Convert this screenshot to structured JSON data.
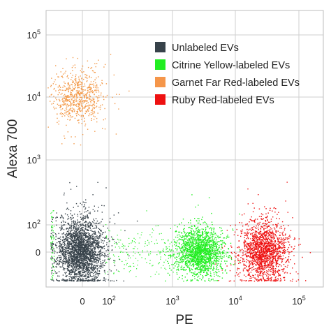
{
  "chart_data": {
    "type": "scatter",
    "xlabel": "PE",
    "ylabel": "Alexa 700",
    "x_scale": "biexponential",
    "y_scale": "biexponential",
    "x_ticks": [
      {
        "value": 0,
        "base": "0",
        "exp": ""
      },
      {
        "value": 100,
        "base": "10",
        "exp": "2"
      },
      {
        "value": 1000,
        "base": "10",
        "exp": "3"
      },
      {
        "value": 10000,
        "base": "10",
        "exp": "4"
      },
      {
        "value": 100000,
        "base": "10",
        "exp": "5"
      }
    ],
    "y_ticks": [
      {
        "value": 0,
        "base": "0",
        "exp": ""
      },
      {
        "value": 100,
        "base": "10",
        "exp": "2"
      },
      {
        "value": 1000,
        "base": "10",
        "exp": "3"
      },
      {
        "value": 10000,
        "base": "10",
        "exp": "4"
      },
      {
        "value": 100000,
        "base": "10",
        "exp": "5"
      }
    ],
    "grid": true,
    "legend_position": "top-right",
    "series": [
      {
        "name": "Unlabeled EVs",
        "color": "#37424a",
        "legend_color": "#37424a",
        "center": {
          "x": 0,
          "y": 0
        },
        "approx_points": 2600
      },
      {
        "name": "Citrine Yellow-labeled EVs",
        "color": "#22ee22",
        "legend_color": "#22ee22",
        "center": {
          "x": 2500,
          "y": 0
        },
        "approx_points": 1800
      },
      {
        "name": "Garnet Far Red-labeled EVs",
        "color": "#f39a4a",
        "legend_color": "#f5964a",
        "center": {
          "x": 0,
          "y": 9000
        },
        "approx_points": 700
      },
      {
        "name": "Ruby Red-labeled EVs",
        "color": "#ee1111",
        "legend_color": "#ee1111",
        "center": {
          "x": 25000,
          "y": 0
        },
        "approx_points": 1700
      }
    ]
  }
}
